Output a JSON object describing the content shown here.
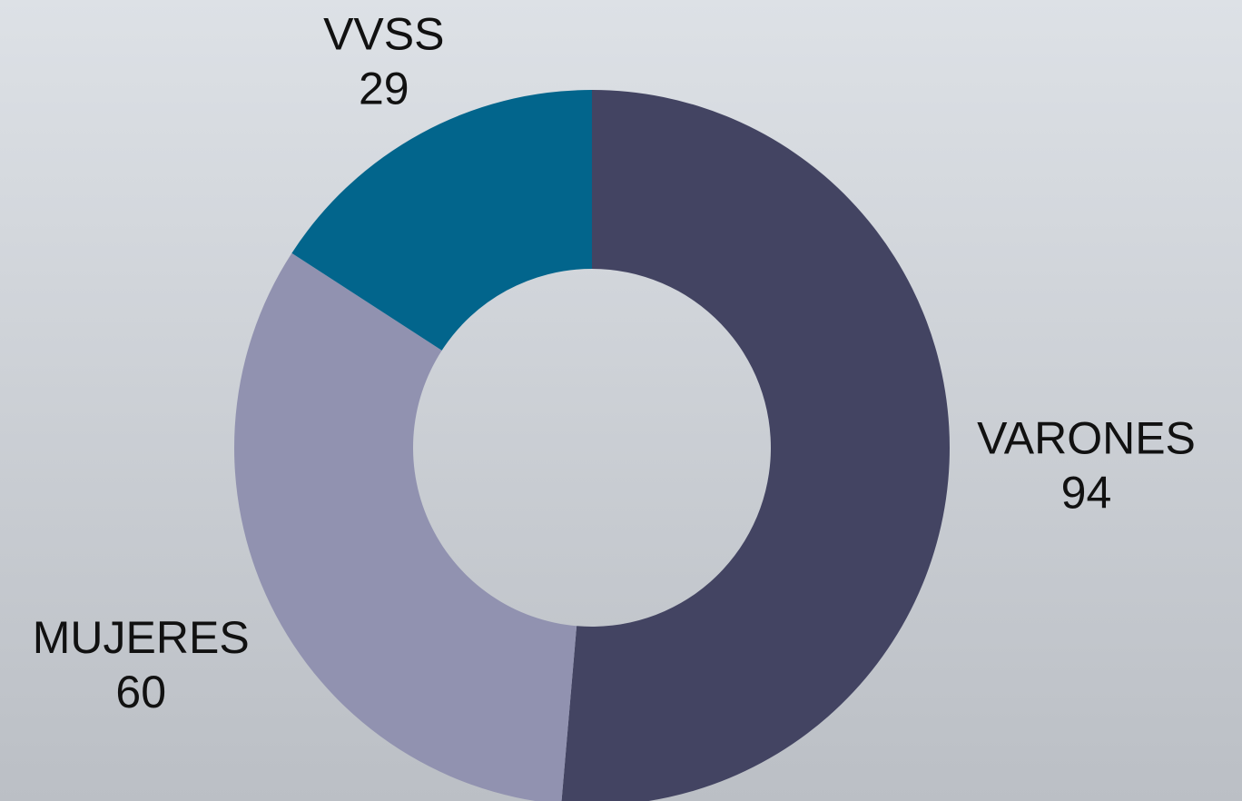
{
  "chart_data": {
    "type": "donut",
    "categories": [
      "VARONES",
      "MUJERES",
      "VVSS"
    ],
    "values": [
      94,
      60,
      29
    ],
    "colors": [
      "#434462",
      "#9192b0",
      "#02658c"
    ]
  }
}
